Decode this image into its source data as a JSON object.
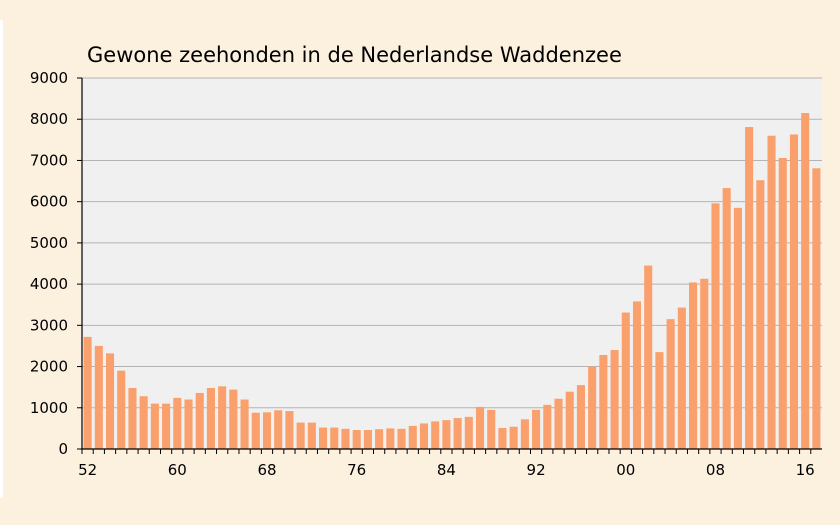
{
  "chart_data": {
    "type": "bar",
    "title": "Gewone zeehonden in de Nederlandse Waddenzee",
    "xlabel": "",
    "ylabel": "",
    "ylim": [
      0,
      9000
    ],
    "yticks": [
      0,
      1000,
      2000,
      3000,
      4000,
      5000,
      6000,
      7000,
      8000,
      9000
    ],
    "xtick_labels": [
      {
        "year": 1952,
        "label": "52"
      },
      {
        "year": 1960,
        "label": "60"
      },
      {
        "year": 1968,
        "label": "68"
      },
      {
        "year": 1976,
        "label": "76"
      },
      {
        "year": 1984,
        "label": "84"
      },
      {
        "year": 1992,
        "label": "92"
      },
      {
        "year": 2000,
        "label": "00"
      },
      {
        "year": 2008,
        "label": "08"
      },
      {
        "year": 2016,
        "label": "16"
      }
    ],
    "grid": true,
    "colors": {
      "bar": "#f9a06c",
      "plot_background": "#f0f0f0",
      "gridline": "#b4b4b4",
      "page_background": "#fcf0df"
    },
    "series": [
      {
        "x": [
          1952,
          1953,
          1954,
          1955,
          1956,
          1957,
          1958,
          1959,
          1960,
          1961,
          1962,
          1963,
          1964,
          1965,
          1966,
          1967,
          1968,
          1969,
          1970,
          1971,
          1972,
          1973,
          1974,
          1975,
          1976,
          1977,
          1978,
          1979,
          1980,
          1981,
          1982,
          1983,
          1984,
          1985,
          1986,
          1987,
          1988,
          1989,
          1990,
          1991,
          1992,
          1993,
          1994,
          1995,
          1996,
          1997,
          1998,
          1999,
          2000,
          2001,
          2002,
          2003,
          2004,
          2005,
          2006,
          2007,
          2008,
          2009,
          2010,
          2011,
          2012,
          2013,
          2014,
          2015,
          2016,
          2017
        ],
        "values": [
          2720,
          2500,
          2320,
          1900,
          1480,
          1280,
          1100,
          1100,
          1240,
          1200,
          1360,
          1480,
          1520,
          1440,
          1200,
          880,
          890,
          940,
          920,
          640,
          640,
          520,
          520,
          490,
          460,
          460,
          480,
          500,
          490,
          560,
          620,
          670,
          700,
          750,
          780,
          1020,
          950,
          510,
          540,
          720,
          950,
          1070,
          1220,
          1390,
          1550,
          2000,
          2280,
          2400,
          3310,
          3580,
          4450,
          2350,
          3150,
          3430,
          4040,
          4130,
          5960,
          6330,
          5850,
          7810,
          6520,
          7600,
          7060,
          7630,
          8150,
          6810
        ]
      }
    ]
  }
}
